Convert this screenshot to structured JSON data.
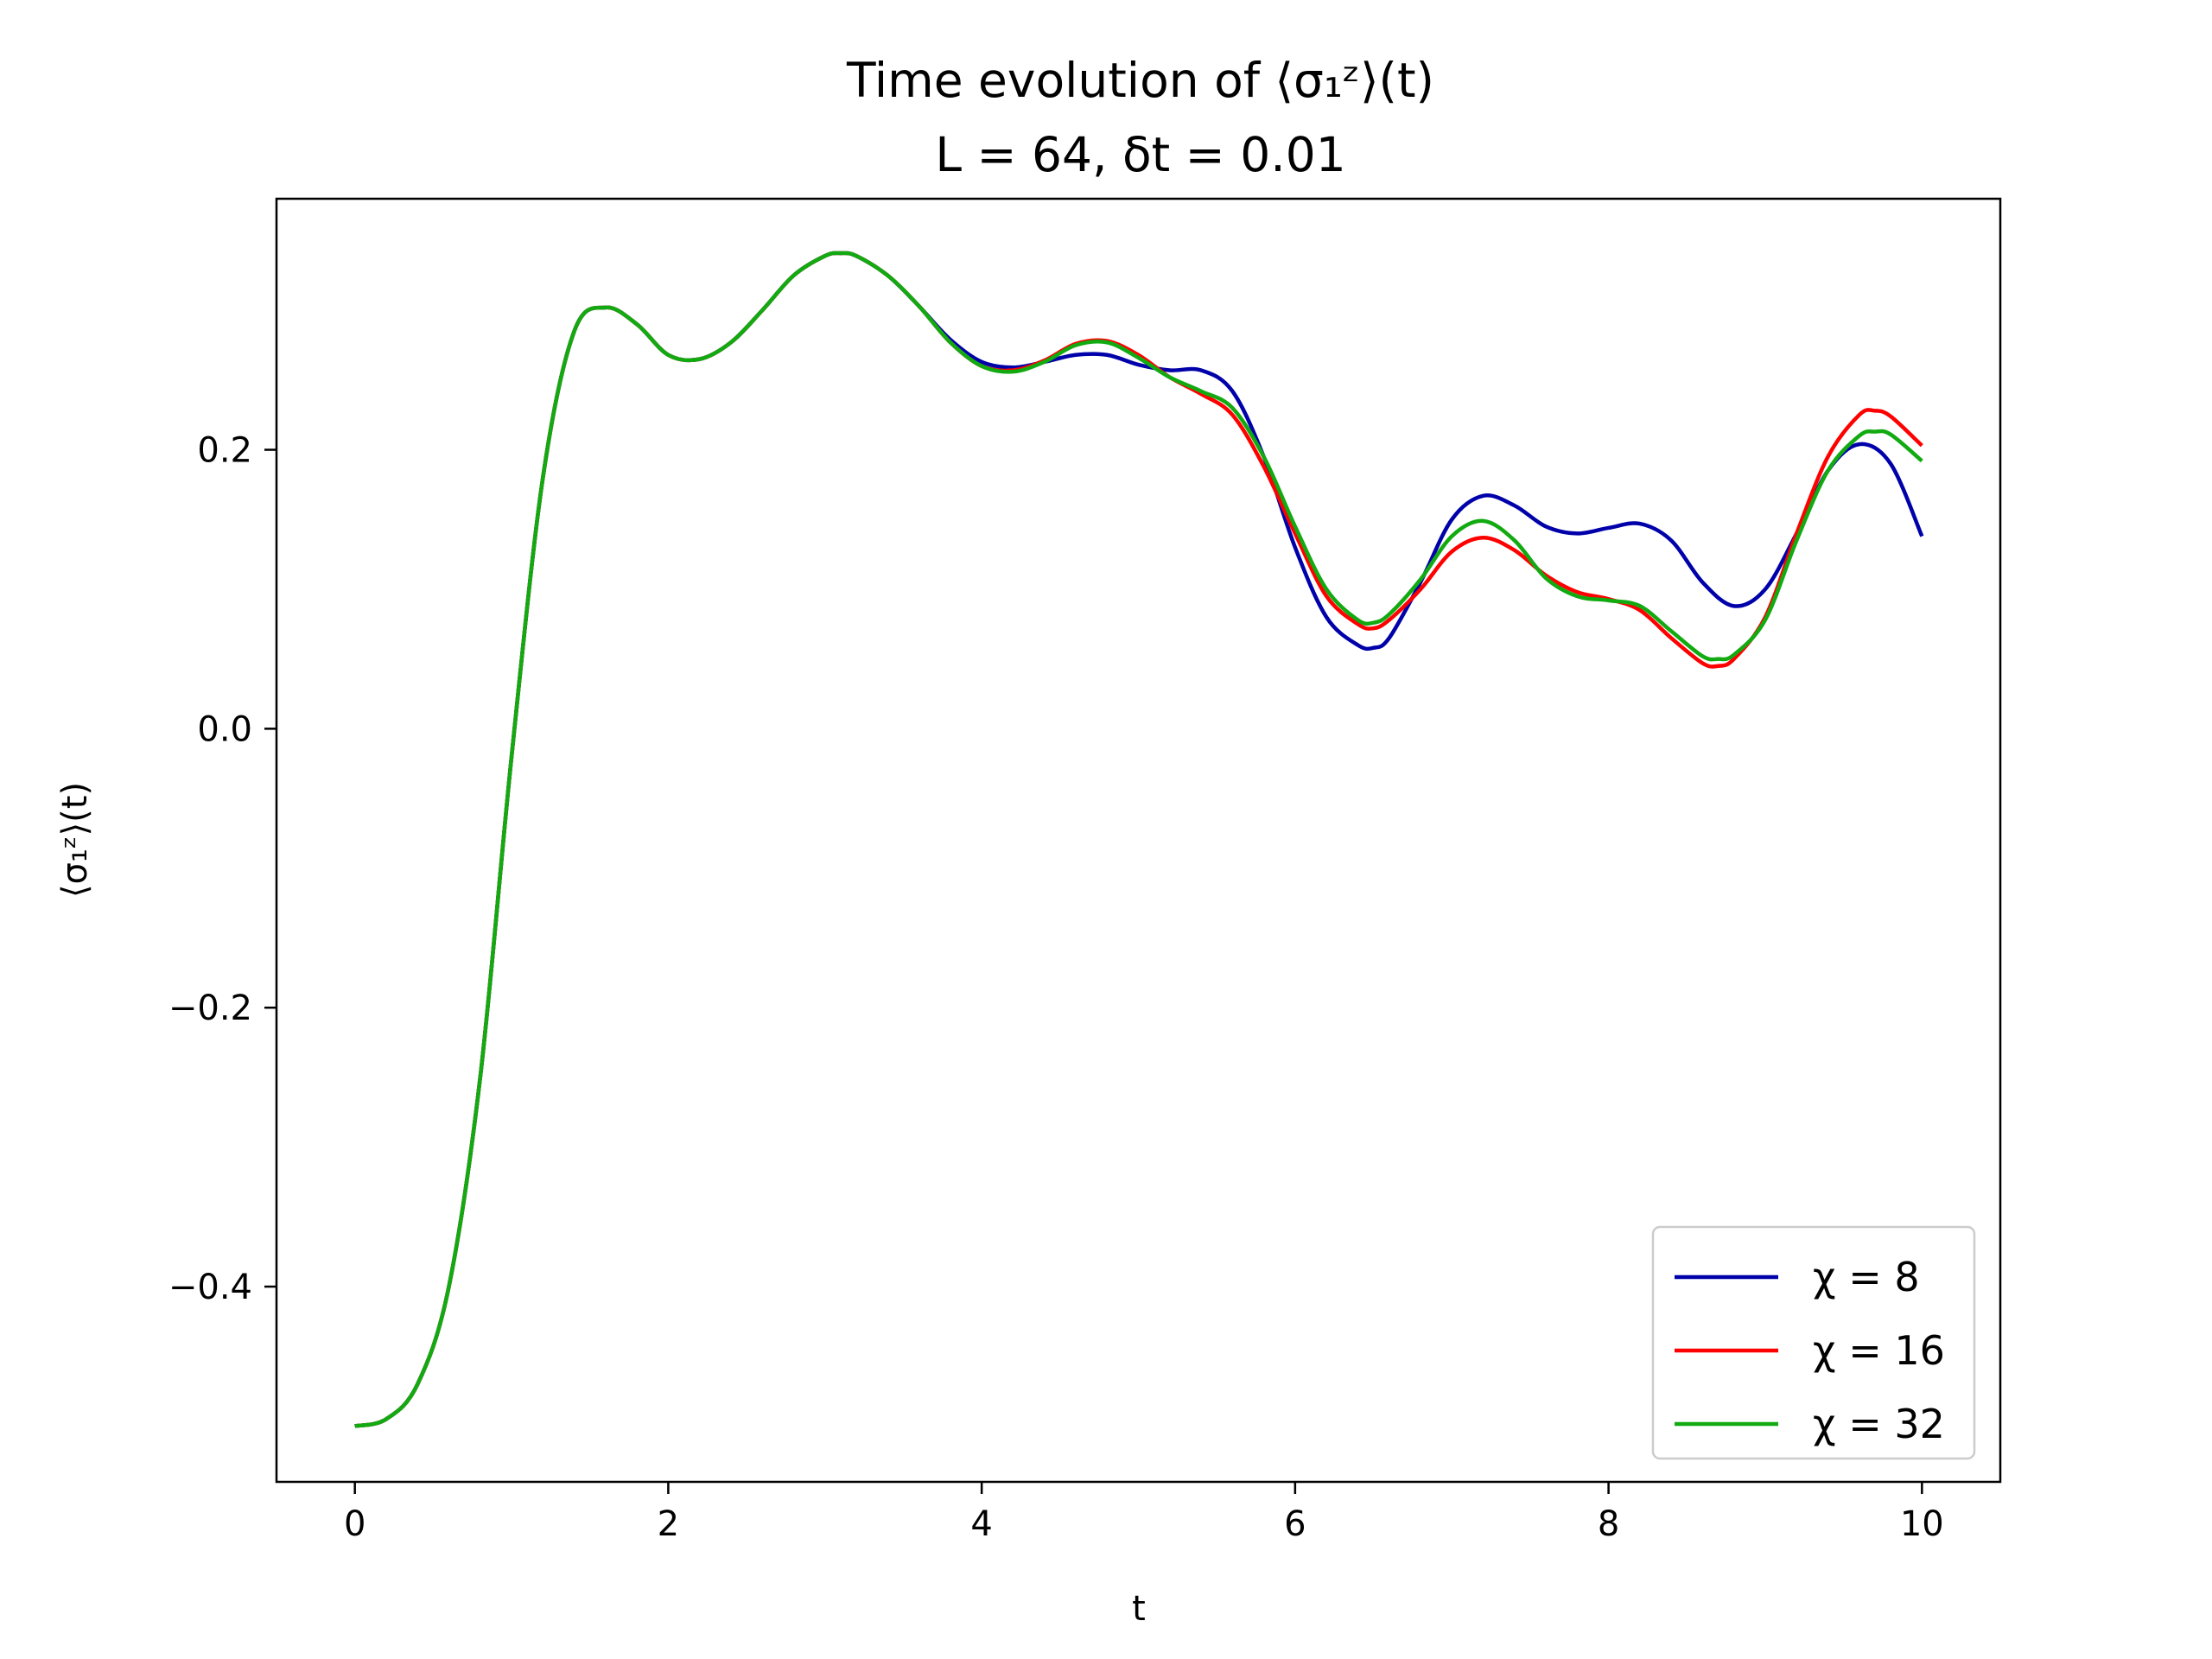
{
  "chart_data": {
    "type": "line",
    "title": "Time evolution of ⟨σ₁ᶻ⟩(t)",
    "subtitle": "L = 64, δt = 0.01",
    "xlabel": "t",
    "ylabel": "⟨σ₁ᶻ⟩(t)",
    "xlim": [
      -0.5,
      10.5
    ],
    "ylim": [
      -0.54,
      0.38
    ],
    "x_ticks": [
      0,
      2,
      4,
      6,
      8,
      10
    ],
    "x_tick_labels": [
      "0",
      "2",
      "4",
      "6",
      "8",
      "10"
    ],
    "y_ticks": [
      -0.4,
      -0.2,
      0.0,
      0.2
    ],
    "y_tick_labels": [
      "−0.4",
      "−0.2",
      "0.0",
      "0.2"
    ],
    "grid": false,
    "legend_position": "bottom-right",
    "series": [
      {
        "name": "χ = 8",
        "color": "#0000aa",
        "points": [
          [
            0.0,
            -0.5
          ],
          [
            0.2,
            -0.495
          ],
          [
            0.4,
            -0.47
          ],
          [
            0.6,
            -0.4
          ],
          [
            0.8,
            -0.25
          ],
          [
            1.0,
            -0.02
          ],
          [
            1.2,
            0.18
          ],
          [
            1.4,
            0.285
          ],
          [
            1.6,
            0.302
          ],
          [
            1.8,
            0.29
          ],
          [
            2.0,
            0.268
          ],
          [
            2.2,
            0.265
          ],
          [
            2.4,
            0.277
          ],
          [
            2.6,
            0.3
          ],
          [
            2.8,
            0.325
          ],
          [
            3.0,
            0.339
          ],
          [
            3.1,
            0.341
          ],
          [
            3.2,
            0.339
          ],
          [
            3.4,
            0.325
          ],
          [
            3.6,
            0.303
          ],
          [
            3.8,
            0.279
          ],
          [
            4.0,
            0.263
          ],
          [
            4.2,
            0.259
          ],
          [
            4.4,
            0.263
          ],
          [
            4.6,
            0.268
          ],
          [
            4.8,
            0.268
          ],
          [
            5.0,
            0.261
          ],
          [
            5.2,
            0.257
          ],
          [
            5.4,
            0.257
          ],
          [
            5.6,
            0.242
          ],
          [
            5.8,
            0.195
          ],
          [
            6.0,
            0.13
          ],
          [
            6.2,
            0.08
          ],
          [
            6.4,
            0.06
          ],
          [
            6.5,
            0.058
          ],
          [
            6.6,
            0.065
          ],
          [
            6.8,
            0.105
          ],
          [
            7.0,
            0.15
          ],
          [
            7.2,
            0.167
          ],
          [
            7.4,
            0.16
          ],
          [
            7.6,
            0.145
          ],
          [
            7.8,
            0.14
          ],
          [
            8.0,
            0.144
          ],
          [
            8.2,
            0.147
          ],
          [
            8.4,
            0.135
          ],
          [
            8.6,
            0.105
          ],
          [
            8.8,
            0.088
          ],
          [
            9.0,
            0.1
          ],
          [
            9.2,
            0.14
          ],
          [
            9.4,
            0.185
          ],
          [
            9.6,
            0.204
          ],
          [
            9.8,
            0.19
          ],
          [
            10.0,
            0.138
          ]
        ]
      },
      {
        "name": "χ = 16",
        "color": "#ff0000",
        "points": [
          [
            0.0,
            -0.5
          ],
          [
            0.2,
            -0.495
          ],
          [
            0.4,
            -0.47
          ],
          [
            0.6,
            -0.4
          ],
          [
            0.8,
            -0.25
          ],
          [
            1.0,
            -0.02
          ],
          [
            1.2,
            0.18
          ],
          [
            1.4,
            0.285
          ],
          [
            1.6,
            0.302
          ],
          [
            1.8,
            0.29
          ],
          [
            2.0,
            0.268
          ],
          [
            2.2,
            0.265
          ],
          [
            2.4,
            0.277
          ],
          [
            2.6,
            0.3
          ],
          [
            2.8,
            0.325
          ],
          [
            3.0,
            0.339
          ],
          [
            3.1,
            0.341
          ],
          [
            3.2,
            0.339
          ],
          [
            3.4,
            0.325
          ],
          [
            3.6,
            0.303
          ],
          [
            3.8,
            0.277
          ],
          [
            4.0,
            0.26
          ],
          [
            4.2,
            0.257
          ],
          [
            4.4,
            0.264
          ],
          [
            4.6,
            0.276
          ],
          [
            4.8,
            0.278
          ],
          [
            5.0,
            0.268
          ],
          [
            5.2,
            0.252
          ],
          [
            5.4,
            0.24
          ],
          [
            5.6,
            0.225
          ],
          [
            5.8,
            0.188
          ],
          [
            6.0,
            0.14
          ],
          [
            6.2,
            0.095
          ],
          [
            6.4,
            0.075
          ],
          [
            6.5,
            0.072
          ],
          [
            6.6,
            0.078
          ],
          [
            6.8,
            0.1
          ],
          [
            7.0,
            0.127
          ],
          [
            7.2,
            0.137
          ],
          [
            7.4,
            0.128
          ],
          [
            7.6,
            0.11
          ],
          [
            7.8,
            0.098
          ],
          [
            8.0,
            0.093
          ],
          [
            8.2,
            0.085
          ],
          [
            8.4,
            0.065
          ],
          [
            8.6,
            0.047
          ],
          [
            8.7,
            0.045
          ],
          [
            8.8,
            0.05
          ],
          [
            9.0,
            0.08
          ],
          [
            9.2,
            0.14
          ],
          [
            9.4,
            0.195
          ],
          [
            9.6,
            0.225
          ],
          [
            9.7,
            0.228
          ],
          [
            9.8,
            0.224
          ],
          [
            10.0,
            0.203
          ]
        ]
      },
      {
        "name": "χ = 32",
        "color": "#11aa11",
        "points": [
          [
            0.0,
            -0.5
          ],
          [
            0.2,
            -0.495
          ],
          [
            0.4,
            -0.47
          ],
          [
            0.6,
            -0.4
          ],
          [
            0.8,
            -0.25
          ],
          [
            1.0,
            -0.02
          ],
          [
            1.2,
            0.18
          ],
          [
            1.4,
            0.285
          ],
          [
            1.6,
            0.302
          ],
          [
            1.8,
            0.29
          ],
          [
            2.0,
            0.268
          ],
          [
            2.2,
            0.265
          ],
          [
            2.4,
            0.277
          ],
          [
            2.6,
            0.3
          ],
          [
            2.8,
            0.325
          ],
          [
            3.0,
            0.339
          ],
          [
            3.1,
            0.341
          ],
          [
            3.2,
            0.339
          ],
          [
            3.4,
            0.325
          ],
          [
            3.6,
            0.303
          ],
          [
            3.8,
            0.277
          ],
          [
            4.0,
            0.26
          ],
          [
            4.2,
            0.256
          ],
          [
            4.4,
            0.263
          ],
          [
            4.6,
            0.275
          ],
          [
            4.8,
            0.277
          ],
          [
            5.0,
            0.266
          ],
          [
            5.2,
            0.252
          ],
          [
            5.4,
            0.242
          ],
          [
            5.6,
            0.23
          ],
          [
            5.8,
            0.195
          ],
          [
            6.0,
            0.145
          ],
          [
            6.2,
            0.1
          ],
          [
            6.4,
            0.078
          ],
          [
            6.5,
            0.076
          ],
          [
            6.6,
            0.082
          ],
          [
            6.8,
            0.107
          ],
          [
            7.0,
            0.138
          ],
          [
            7.2,
            0.149
          ],
          [
            7.4,
            0.135
          ],
          [
            7.6,
            0.108
          ],
          [
            7.8,
            0.095
          ],
          [
            8.0,
            0.092
          ],
          [
            8.2,
            0.088
          ],
          [
            8.4,
            0.07
          ],
          [
            8.6,
            0.052
          ],
          [
            8.7,
            0.05
          ],
          [
            8.8,
            0.053
          ],
          [
            9.0,
            0.078
          ],
          [
            9.2,
            0.135
          ],
          [
            9.4,
            0.185
          ],
          [
            9.6,
            0.21
          ],
          [
            9.7,
            0.213
          ],
          [
            9.8,
            0.211
          ],
          [
            10.0,
            0.192
          ]
        ]
      }
    ]
  }
}
